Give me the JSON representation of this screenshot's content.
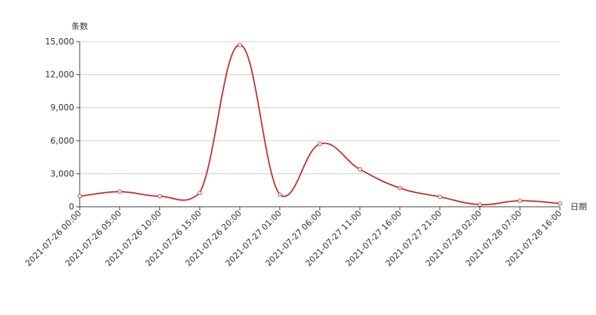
{
  "chart_data": {
    "type": "line",
    "title": "",
    "ylabel": "条数",
    "xlabel": "日期",
    "ylim": [
      0,
      15000
    ],
    "yticks": [
      0,
      3000,
      6000,
      9000,
      12000,
      15000
    ],
    "ytick_labels": [
      "0",
      "3,000",
      "6,000",
      "9,000",
      "12,000",
      "15,000"
    ],
    "grid": true,
    "legend": "none",
    "categories": [
      "2021-07-26 00:00",
      "2021-07-26 05:00",
      "2021-07-26 10:00",
      "2021-07-26 15:00",
      "2021-07-26 20:00",
      "2021-07-27 01:00",
      "2021-07-27 06:00",
      "2021-07-27 11:00",
      "2021-07-27 16:00",
      "2021-07-27 21:00",
      "2021-07-28 02:00",
      "2021-07-28 07:00",
      "2021-07-28 16:00"
    ],
    "series": [
      {
        "values": [
          950,
          1370,
          950,
          1250,
          14700,
          1100,
          5700,
          3400,
          1700,
          900,
          200,
          550,
          300
        ]
      }
    ],
    "colors": {
      "line": "#c23531",
      "axis": "#333333",
      "grid": "#cccccc",
      "point_fill": "#ffffff"
    }
  }
}
